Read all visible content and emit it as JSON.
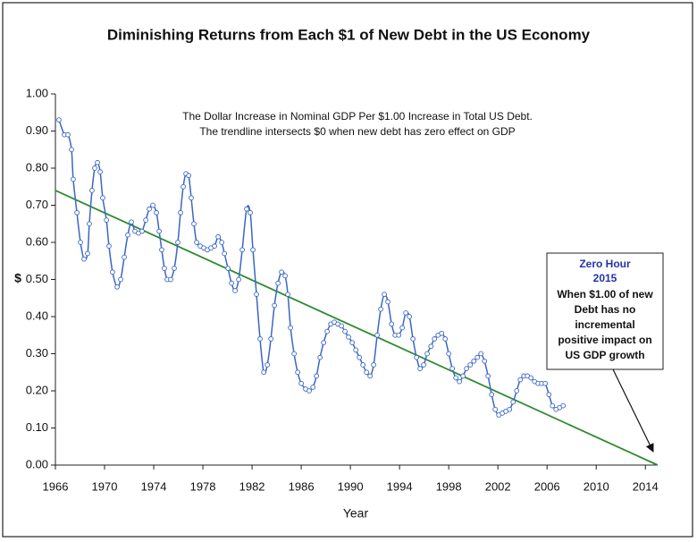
{
  "chart_data": {
    "type": "line",
    "title": "Diminishing Returns from Each $1 of New Debt in the US Economy",
    "annotations": [
      "The Dollar Increase in Nominal GDP Per $1.00 Increase in Total US Debt.",
      "The trendline intersects $0 when new debt has zero effect on GDP"
    ],
    "callout": {
      "title": "Zero Hour",
      "year": "2015",
      "lines": [
        "When $1.00 of new",
        "Debt has no",
        "incremental",
        "positive impact on",
        "US GDP growth"
      ]
    },
    "x_label": "Year",
    "y_label": "$",
    "xlim": [
      1966,
      2015
    ],
    "ylim": [
      0,
      1
    ],
    "xticks": [
      1966,
      1970,
      1974,
      1978,
      1982,
      1986,
      1990,
      1994,
      1998,
      2002,
      2006,
      2010,
      2014
    ],
    "yticks": [
      {
        "value": 0,
        "label": "0.00"
      },
      {
        "value": 0.1,
        "label": "0.10"
      },
      {
        "value": 0.2,
        "label": "0.20"
      },
      {
        "value": 0.3,
        "label": "0.30"
      },
      {
        "value": 0.4,
        "label": "0.40"
      },
      {
        "value": 0.5,
        "label": "0.50"
      },
      {
        "value": 0.6,
        "label": "0.60"
      },
      {
        "value": 0.7,
        "label": "0.70"
      },
      {
        "value": 0.8,
        "label": "0.80"
      },
      {
        "value": 0.9,
        "label": "0.90"
      },
      {
        "value": 1,
        "label": "1.00"
      }
    ],
    "grid": false,
    "x": [
      1966.29,
      1966.73,
      1967.02,
      1967.31,
      1967.45,
      1967.75,
      1968.04,
      1968.33,
      1968.62,
      1968.76,
      1968.98,
      1969.2,
      1969.42,
      1969.64,
      1969.85,
      1970.15,
      1970.36,
      1970.65,
      1971.02,
      1971.31,
      1971.6,
      1971.89,
      1972.18,
      1972.47,
      1972.76,
      1973.05,
      1973.35,
      1973.64,
      1973.93,
      1974.22,
      1974.44,
      1974.65,
      1974.87,
      1975.09,
      1975.38,
      1975.67,
      1975.96,
      1976.18,
      1976.4,
      1976.62,
      1976.84,
      1977.05,
      1977.27,
      1977.49,
      1977.78,
      1978.07,
      1978.36,
      1978.65,
      1978.95,
      1979.24,
      1979.53,
      1979.75,
      1980.04,
      1980.33,
      1980.62,
      1980.91,
      1981.2,
      1981.56,
      1981.85,
      1982.07,
      1982.36,
      1982.65,
      1982.95,
      1983.24,
      1983.53,
      1983.82,
      1984.11,
      1984.4,
      1984.69,
      1984.91,
      1985.13,
      1985.42,
      1985.71,
      1986,
      1986.36,
      1986.65,
      1986.95,
      1987.24,
      1987.53,
      1987.82,
      1988.11,
      1988.4,
      1988.69,
      1988.98,
      1989.27,
      1989.56,
      1989.85,
      1990.15,
      1990.44,
      1990.73,
      1991.02,
      1991.31,
      1991.6,
      1991.89,
      1992.18,
      1992.47,
      1992.76,
      1993.05,
      1993.35,
      1993.64,
      1993.93,
      1994.22,
      1994.51,
      1994.8,
      1995.09,
      1995.38,
      1995.67,
      1995.96,
      1996.25,
      1996.55,
      1996.84,
      1997.13,
      1997.42,
      1997.71,
      1998,
      1998.29,
      1998.58,
      1998.87,
      1999.16,
      1999.45,
      1999.75,
      2000.04,
      2000.33,
      2000.62,
      2000.91,
      2001.2,
      2001.49,
      2001.78,
      2002.07,
      2002.36,
      2002.65,
      2002.95,
      2003.24,
      2003.53,
      2003.82,
      2004.11,
      2004.4,
      2004.69,
      2004.98,
      2005.27,
      2005.56,
      2005.85,
      2006.15,
      2006.44,
      2006.73,
      2007.02,
      2007.31
    ],
    "series": [
      {
        "color": "#3a66c4",
        "values": [
          0.93,
          0.89,
          0.89,
          0.85,
          0.77,
          0.68,
          0.6,
          0.555,
          0.57,
          0.65,
          0.74,
          0.8,
          0.815,
          0.79,
          0.72,
          0.66,
          0.59,
          0.52,
          0.48,
          0.5,
          0.56,
          0.62,
          0.655,
          0.63,
          0.625,
          0.63,
          0.66,
          0.69,
          0.7,
          0.68,
          0.63,
          0.58,
          0.53,
          0.5,
          0.5,
          0.53,
          0.6,
          0.68,
          0.75,
          0.785,
          0.78,
          0.72,
          0.65,
          0.6,
          0.59,
          0.585,
          0.58,
          0.585,
          0.59,
          0.615,
          0.6,
          0.57,
          0.53,
          0.49,
          0.47,
          0.5,
          0.58,
          0.69,
          0.68,
          0.58,
          0.46,
          0.34,
          0.25,
          0.27,
          0.34,
          0.43,
          0.49,
          0.52,
          0.51,
          0.46,
          0.37,
          0.3,
          0.25,
          0.22,
          0.205,
          0.2,
          0.21,
          0.24,
          0.29,
          0.33,
          0.36,
          0.38,
          0.385,
          0.38,
          0.375,
          0.36,
          0.345,
          0.33,
          0.31,
          0.29,
          0.27,
          0.25,
          0.24,
          0.27,
          0.35,
          0.42,
          0.46,
          0.44,
          0.38,
          0.35,
          0.35,
          0.37,
          0.41,
          0.4,
          0.34,
          0.29,
          0.26,
          0.27,
          0.3,
          0.32,
          0.34,
          0.35,
          0.355,
          0.34,
          0.3,
          0.26,
          0.235,
          0.225,
          0.24,
          0.26,
          0.27,
          0.28,
          0.29,
          0.3,
          0.28,
          0.24,
          0.19,
          0.15,
          0.135,
          0.14,
          0.145,
          0.15,
          0.17,
          0.2,
          0.23,
          0.24,
          0.24,
          0.235,
          0.225,
          0.22,
          0.22,
          0.22,
          0.19,
          0.16,
          0.15,
          0.155,
          0.16
        ]
      }
    ],
    "trendline": {
      "color": "#2e8b2e",
      "x": [
        1966,
        2015
      ],
      "values": [
        0.74,
        0
      ]
    }
  }
}
